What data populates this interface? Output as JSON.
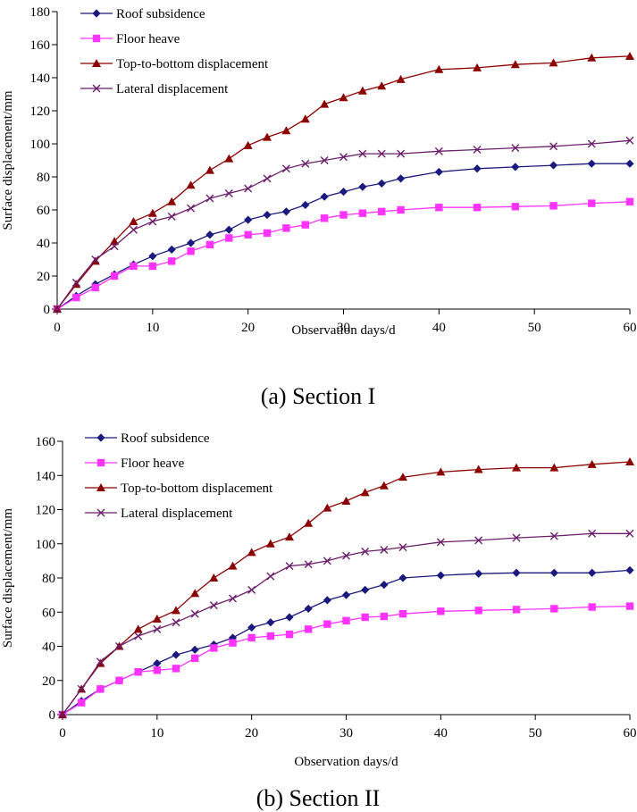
{
  "chart_data": [
    {
      "type": "line",
      "caption": "(a) Section I",
      "xlabel": "Observation days/d",
      "ylabel": "Surface displacement/mm",
      "xlim": [
        0,
        60
      ],
      "ylim": [
        0,
        180
      ],
      "xticks": [
        0,
        10,
        20,
        30,
        40,
        50,
        60
      ],
      "yticks": [
        0,
        20,
        40,
        60,
        80,
        100,
        120,
        140,
        160,
        180
      ],
      "legend_position": "top-left",
      "grid": false,
      "series": [
        {
          "name": "Roof subsidence",
          "color": "#1a1a7e",
          "marker": "diamond",
          "x": [
            0,
            2,
            4,
            6,
            8,
            10,
            12,
            14,
            16,
            18,
            20,
            22,
            24,
            26,
            28,
            30,
            32,
            34,
            36,
            40,
            44,
            48,
            52,
            56,
            60
          ],
          "y": [
            0,
            8,
            15,
            21,
            27,
            32,
            36,
            40,
            45,
            48,
            54,
            57,
            59,
            63,
            68,
            71,
            74,
            76,
            79,
            83,
            85,
            86,
            87,
            88,
            88
          ]
        },
        {
          "name": "Floor heave",
          "color": "#ff33ff",
          "marker": "square",
          "x": [
            0,
            2,
            4,
            6,
            8,
            10,
            12,
            14,
            16,
            18,
            20,
            22,
            24,
            26,
            28,
            30,
            32,
            34,
            36,
            40,
            44,
            48,
            52,
            56,
            60
          ],
          "y": [
            0,
            7,
            13,
            20,
            26,
            26,
            29,
            35,
            39,
            43,
            45,
            46,
            49,
            51,
            55,
            57,
            58,
            59,
            60,
            61.5,
            61.5,
            62,
            62.5,
            64,
            65
          ]
        },
        {
          "name": "Top-to-bottom displacement",
          "color": "#8b0000",
          "marker": "triangle",
          "x": [
            0,
            2,
            4,
            6,
            8,
            10,
            12,
            14,
            16,
            18,
            20,
            22,
            24,
            26,
            28,
            30,
            32,
            34,
            36,
            40,
            44,
            48,
            52,
            56,
            60
          ],
          "y": [
            0,
            15,
            29,
            41,
            53,
            58,
            65,
            75,
            84,
            91,
            99,
            104,
            108,
            115,
            124,
            128,
            132,
            135,
            139,
            145,
            146,
            148,
            149,
            152,
            153
          ]
        },
        {
          "name": "Lateral displacement",
          "color": "#6b1f6b",
          "marker": "x",
          "x": [
            0,
            2,
            4,
            6,
            8,
            10,
            12,
            14,
            16,
            18,
            20,
            22,
            24,
            26,
            28,
            30,
            32,
            34,
            36,
            40,
            44,
            48,
            52,
            56,
            60
          ],
          "y": [
            0,
            16,
            30,
            38,
            48,
            53,
            56,
            61,
            67,
            70,
            73,
            79,
            85,
            88,
            90,
            92,
            94,
            94,
            94,
            95.5,
            96.5,
            97.5,
            98.5,
            100,
            102
          ]
        }
      ]
    },
    {
      "type": "line",
      "caption": "(b) Section II",
      "xlabel": "Observation days/d",
      "ylabel": "Surface displacement/mm",
      "xlim": [
        0,
        60
      ],
      "ylim": [
        0,
        160
      ],
      "xticks": [
        0,
        10,
        20,
        30,
        40,
        50,
        60
      ],
      "yticks": [
        0,
        20,
        40,
        60,
        80,
        100,
        120,
        140,
        160
      ],
      "legend_position": "top-left",
      "grid": false,
      "series": [
        {
          "name": "Roof subsidence",
          "color": "#1a1a7e",
          "marker": "diamond",
          "x": [
            0,
            2,
            4,
            6,
            8,
            10,
            12,
            14,
            16,
            18,
            20,
            22,
            24,
            26,
            28,
            30,
            32,
            34,
            36,
            40,
            44,
            48,
            52,
            56,
            60
          ],
          "y": [
            0,
            8,
            15,
            20,
            25,
            30,
            35,
            38,
            41,
            45,
            51,
            54,
            57,
            62,
            67,
            70,
            73,
            76,
            80,
            81.5,
            82.5,
            83,
            83,
            83,
            84.5
          ]
        },
        {
          "name": "Floor heave",
          "color": "#ff33ff",
          "marker": "square",
          "x": [
            0,
            2,
            4,
            6,
            8,
            10,
            12,
            14,
            16,
            18,
            20,
            22,
            24,
            26,
            28,
            30,
            32,
            34,
            36,
            40,
            44,
            48,
            52,
            56,
            60
          ],
          "y": [
            0,
            7,
            15,
            20,
            25,
            26,
            27,
            33,
            39,
            42,
            45,
            46,
            47,
            50,
            53,
            55,
            57,
            57.5,
            59,
            60.5,
            61,
            61.5,
            62,
            63,
            63.5
          ]
        },
        {
          "name": "Top-to-bottom displacement",
          "color": "#8b0000",
          "marker": "triangle",
          "x": [
            0,
            2,
            4,
            6,
            8,
            10,
            12,
            14,
            16,
            18,
            20,
            22,
            24,
            26,
            28,
            30,
            32,
            34,
            36,
            40,
            44,
            48,
            52,
            56,
            60
          ],
          "y": [
            0,
            15,
            30,
            40,
            50,
            56,
            61,
            71,
            80,
            87,
            95,
            100,
            104,
            112,
            121,
            125,
            130,
            134,
            139,
            142,
            143.5,
            144.5,
            144.5,
            146.5,
            148
          ]
        },
        {
          "name": "Lateral displacement",
          "color": "#6b1f6b",
          "marker": "x",
          "x": [
            0,
            2,
            4,
            6,
            8,
            10,
            12,
            14,
            16,
            18,
            20,
            22,
            24,
            26,
            28,
            30,
            32,
            34,
            36,
            40,
            44,
            48,
            52,
            56,
            60
          ],
          "y": [
            0,
            15,
            31,
            40,
            46,
            50,
            54,
            59,
            64,
            68,
            73,
            81,
            87,
            88,
            90,
            93,
            95.5,
            96.5,
            98,
            101,
            102,
            103.5,
            104.5,
            106,
            106
          ]
        }
      ]
    }
  ]
}
